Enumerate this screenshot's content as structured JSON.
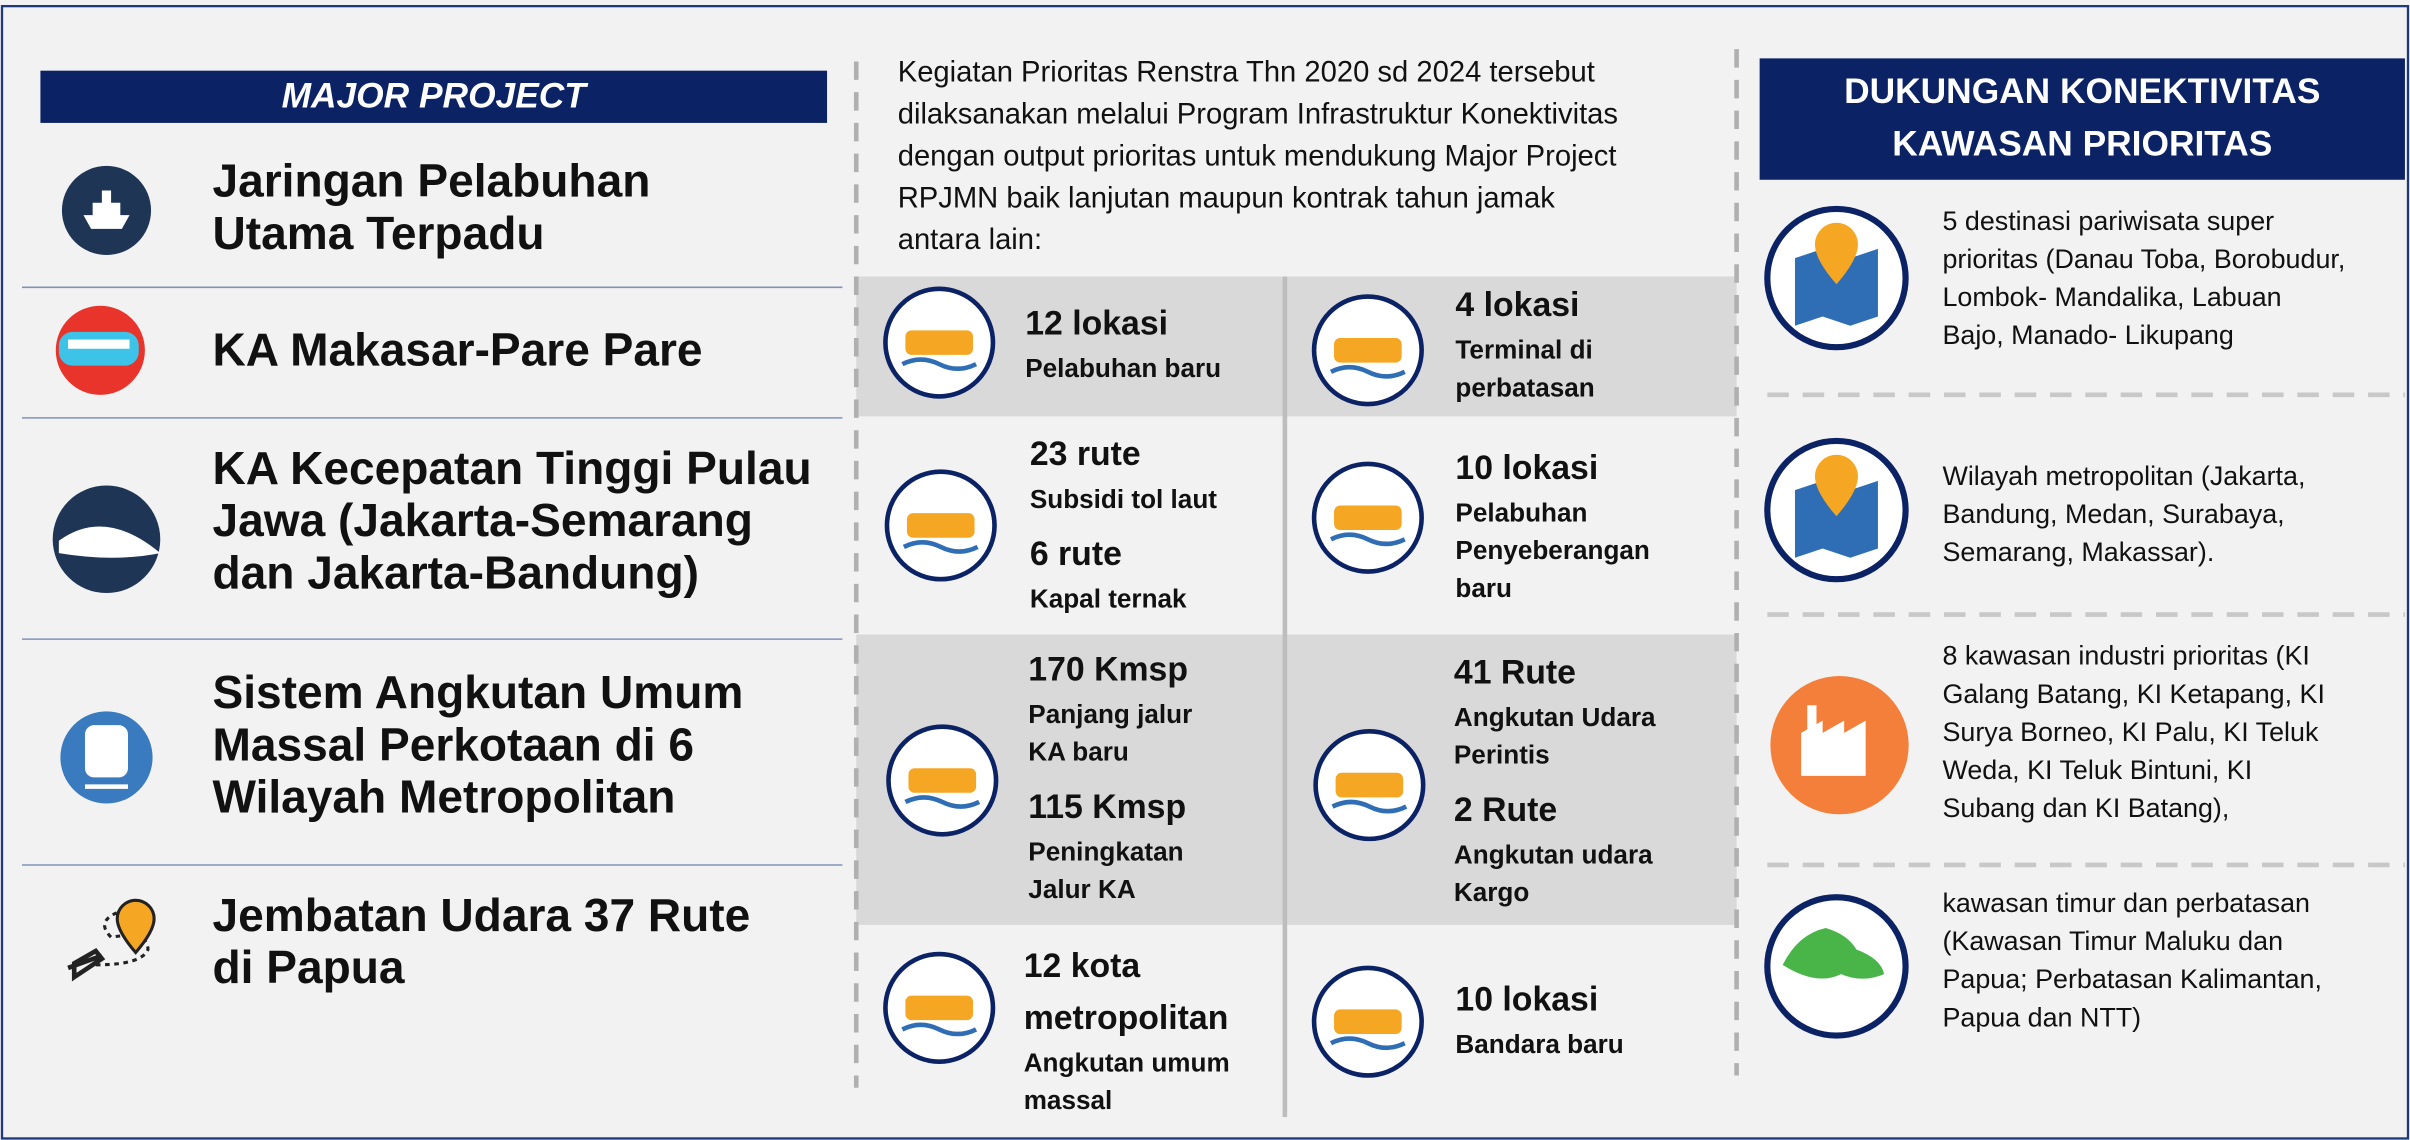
{
  "left": {
    "title": "MAJOR PROJECT",
    "items": [
      [
        "Jaringan Pelabuhan",
        "Utama Terpadu"
      ],
      [
        "KA Makasar-Pare Pare"
      ],
      [
        "KA Kecepatan Tinggi Pulau",
        "Jawa (Jakarta-Semarang",
        "dan Jakarta-Bandung)"
      ],
      [
        "Sistem Angkutan Umum",
        "Massal Perkotaan di 6",
        "Wilayah Metropolitan"
      ],
      [
        "Jembatan Udara 37 Rute",
        "di Papua"
      ]
    ]
  },
  "middle": {
    "intro": [
      "Kegiatan Prioritas Renstra Thn 2020 sd 2024 tersebut",
      "dilaksanakan melalui Program Infrastruktur Konektivitas",
      "dengan output prioritas untuk mendukung Major Project",
      "RPJMN baik lanjutan maupun kontrak tahun jamak",
      "antara lain:"
    ],
    "cells": [
      {
        "entries": [
          {
            "head": [
              "12 lokasi"
            ],
            "sub": [
              "Pelabuhan baru"
            ]
          }
        ]
      },
      {
        "entries": [
          {
            "head": [
              "4 lokasi"
            ],
            "sub": [
              "Terminal di",
              "perbatasan"
            ]
          }
        ]
      },
      {
        "entries": [
          {
            "head": [
              "23 rute"
            ],
            "sub": [
              "Subsidi tol laut"
            ]
          },
          {
            "head": [
              "6 rute"
            ],
            "sub": [
              "Kapal ternak"
            ]
          }
        ]
      },
      {
        "entries": [
          {
            "head": [
              "10 lokasi"
            ],
            "sub": [
              "Pelabuhan",
              "Penyeberangan",
              "baru"
            ]
          }
        ]
      },
      {
        "entries": [
          {
            "head": [
              "170 Kmsp"
            ],
            "sub": [
              "Panjang jalur",
              "KA baru"
            ]
          },
          {
            "head": [
              "115 Kmsp"
            ],
            "sub": [
              "Peningkatan",
              "Jalur KA"
            ]
          }
        ]
      },
      {
        "entries": [
          {
            "head": [
              "41 Rute"
            ],
            "sub": [
              "Angkutan Udara",
              "Perintis"
            ]
          },
          {
            "head": [
              "2 Rute"
            ],
            "sub": [
              "Angkutan udara",
              "Kargo"
            ]
          }
        ]
      },
      {
        "entries": [
          {
            "head": [
              "12 kota",
              "metropolitan"
            ],
            "sub": [
              "Angkutan umum",
              "massal"
            ]
          }
        ]
      },
      {
        "entries": [
          {
            "head": [
              "10 lokasi"
            ],
            "sub": [
              "Bandara baru"
            ]
          }
        ]
      }
    ]
  },
  "right": {
    "title": [
      "DUKUNGAN KONEKTIVITAS",
      "KAWASAN PRIORITAS"
    ],
    "items": [
      [
        "5 destinasi pariwisata super",
        "prioritas (Danau Toba, Borobudur,",
        "Lombok-  Mandalika, Labuan",
        "Bajo, Manado-  Likupang"
      ],
      [
        "Wilayah metropolitan (Jakarta,",
        "Bandung, Medan,  Surabaya,",
        "Semarang, Makassar)."
      ],
      [
        "8 kawasan industri prioritas (KI",
        "Galang Batang, KI Ketapang, KI",
        "Surya  Borneo, KI Palu, KI Teluk",
        "Weda, KI Teluk  Bintuni, KI",
        "Subang dan KI Batang),"
      ],
      [
        "kawasan timur dan perbatasan",
        "(Kawasan Timur Maluku dan",
        "Papua; Perbatasan Kalimantan,",
        "Papua dan NTT)"
      ]
    ]
  }
}
